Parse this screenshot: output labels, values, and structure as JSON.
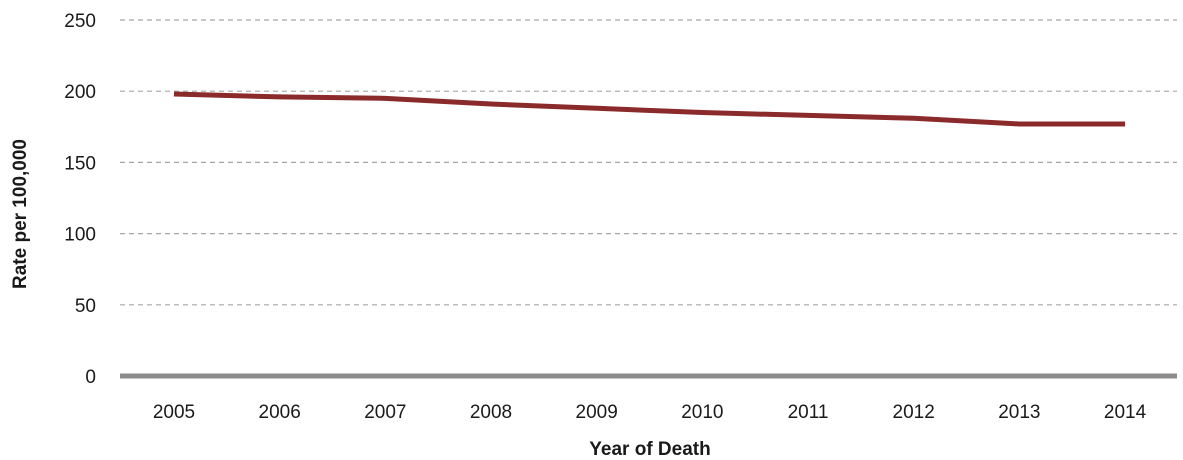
{
  "chart_data": {
    "type": "line",
    "title": "",
    "xlabel": "Year of Death",
    "ylabel": "Rate per 100,000",
    "categories": [
      "2005",
      "2006",
      "2007",
      "2008",
      "2009",
      "2010",
      "2011",
      "2012",
      "2013",
      "2014"
    ],
    "series": [
      {
        "values": [
          198,
          196,
          195,
          191,
          188,
          185,
          183,
          181,
          177,
          177
        ]
      }
    ],
    "ylim": [
      0,
      250
    ],
    "yticks": [
      0,
      50,
      100,
      150,
      200,
      250
    ],
    "grid": true,
    "legend": "none",
    "colors": {
      "series": "#8b2a2a",
      "grid": "#a6a6a6",
      "baseline": "#8c8c8c"
    }
  }
}
